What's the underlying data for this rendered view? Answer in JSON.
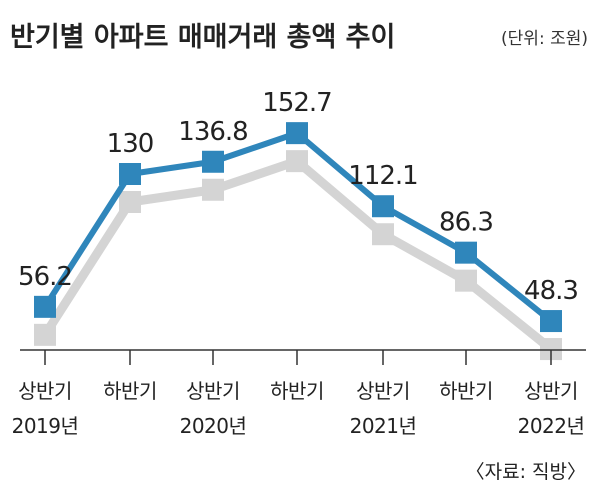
{
  "chart_data": {
    "type": "line",
    "title": "반기별 아파트 매매거래 총액 추이",
    "unit": "(단위: 조원)",
    "source": "〈자료: 직방〉",
    "categories": [
      {
        "half": "상반기",
        "year": "2019년"
      },
      {
        "half": "하반기",
        "year": ""
      },
      {
        "half": "상반기",
        "year": "2020년"
      },
      {
        "half": "하반기",
        "year": ""
      },
      {
        "half": "상반기",
        "year": "2021년"
      },
      {
        "half": "하반기",
        "year": ""
      },
      {
        "half": "상반기",
        "year": "2022년"
      }
    ],
    "values": [
      56.2,
      130,
      136.8,
      152.7,
      112.1,
      86.3,
      48.3
    ],
    "value_labels": [
      "56.2",
      "130",
      "136.8",
      "152.7",
      "112.1",
      "86.3",
      "48.3"
    ],
    "line_color": "#2f86bb",
    "marker_color": "#2f86bb",
    "shadow_color": "#d4d4d4",
    "grid": false,
    "legend": "none"
  }
}
